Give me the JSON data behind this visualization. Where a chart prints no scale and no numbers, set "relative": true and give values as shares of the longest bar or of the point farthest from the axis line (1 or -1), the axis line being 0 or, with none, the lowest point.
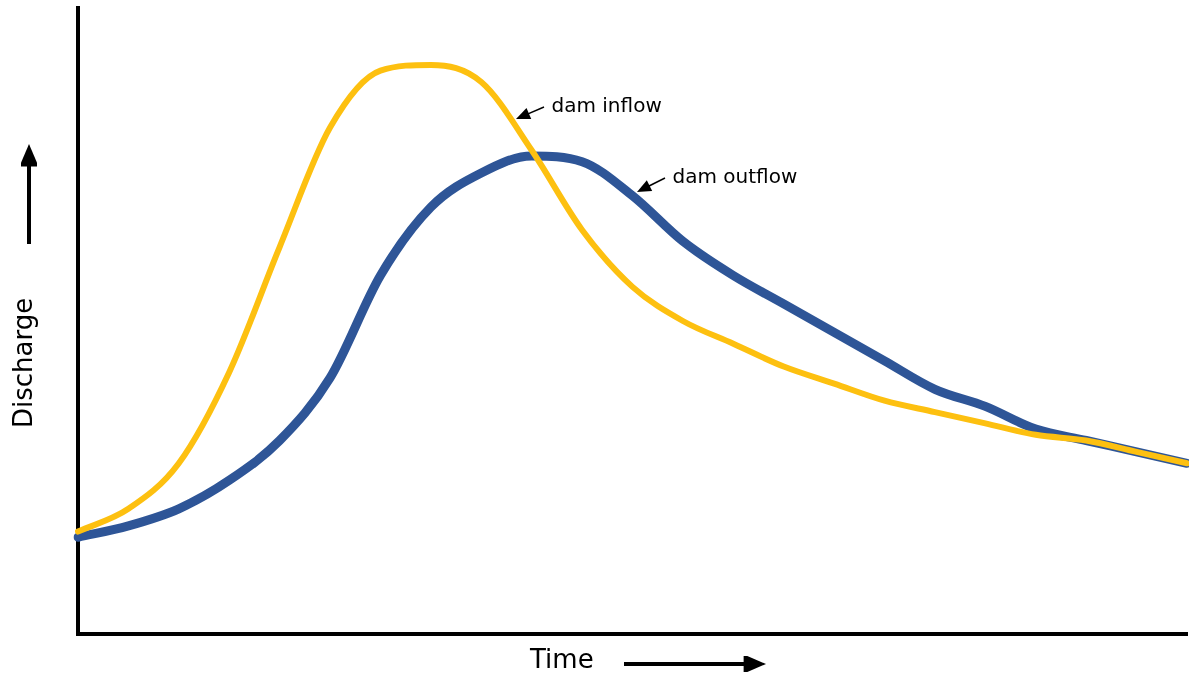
{
  "chart_data": {
    "type": "line",
    "relative": true,
    "xlabel": "Time",
    "ylabel": "Discharge",
    "legend": false,
    "grid": false,
    "marker": "none",
    "line_style": "solid",
    "categories": [
      null,
      null,
      null,
      null,
      null,
      null,
      null,
      null,
      null,
      null,
      null,
      null,
      null,
      null,
      null,
      null,
      null,
      null,
      null,
      null,
      null,
      null,
      null
    ],
    "series": [
      {
        "name": "dam inflow",
        "color": "#fdc010",
        "values": [
          0.18,
          0.22,
          0.3,
          0.46,
          0.68,
          0.89,
          0.99,
          1.0,
          0.97,
          0.85,
          0.71,
          0.61,
          0.55,
          0.51,
          0.47,
          0.44,
          0.41,
          0.39,
          0.37,
          0.35,
          0.34,
          0.32,
          0.3
        ]
      },
      {
        "name": "dam outflow",
        "color": "#2e5597",
        "values": [
          0.17,
          0.19,
          0.22,
          0.27,
          0.34,
          0.45,
          0.63,
          0.75,
          0.81,
          0.84,
          0.83,
          0.77,
          0.69,
          0.63,
          0.58,
          0.53,
          0.48,
          0.43,
          0.4,
          0.36,
          0.34,
          0.32,
          0.3
        ]
      }
    ]
  }
}
